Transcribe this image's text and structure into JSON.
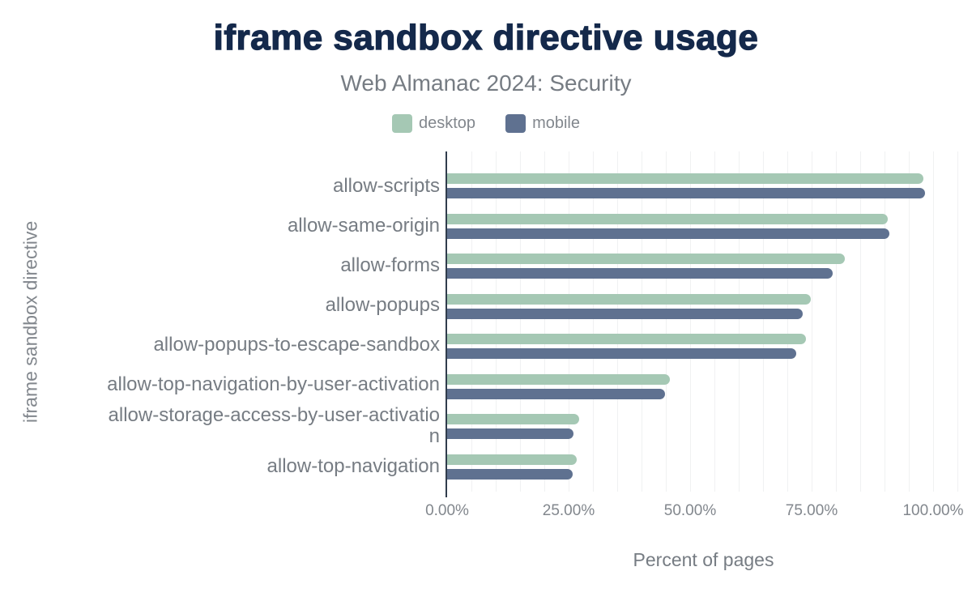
{
  "chart": {
    "title": "iframe sandbox directive usage",
    "subtitle": "Web Almanac 2024: Security",
    "xlabel": "Percent of pages",
    "ylabel": "iframe sandbox directive"
  },
  "chart_data": {
    "type": "bar",
    "orientation": "horizontal",
    "title": "iframe sandbox directive usage",
    "subtitle": "Web Almanac 2024: Security",
    "xlabel": "Percent of pages",
    "ylabel": "iframe sandbox directive",
    "categories": [
      "allow-scripts",
      "allow-same-origin",
      "allow-forms",
      "allow-popups",
      "allow-popups-to-escape-sandbox",
      "allow-top-navigation-by-user-activation",
      "allow-storage-access-by-user-activation",
      "allow-top-navigation"
    ],
    "series": [
      {
        "name": "desktop",
        "color": "#a5c8b4",
        "values": [
          98.0,
          90.7,
          81.8,
          74.8,
          73.8,
          45.8,
          27.2,
          26.7
        ]
      },
      {
        "name": "mobile",
        "color": "#5f7190",
        "values": [
          98.3,
          91.0,
          79.3,
          73.2,
          71.8,
          44.8,
          26.0,
          25.8
        ]
      }
    ],
    "x_ticks": [
      "0.00%",
      "25.00%",
      "50.00%",
      "75.00%",
      "100.00%"
    ],
    "x_tick_step_percent": 25,
    "xlim": [
      0,
      105
    ],
    "grid": true,
    "grid_step_percent": 5,
    "legend_position": "top",
    "value_unit": "percent of pages"
  },
  "colors": {
    "title": "#14294b",
    "subtitle_gray": "#767c83",
    "tick_gray": "#82878d",
    "axis_line": "#303c4c",
    "grid": "#f0f1f2",
    "desktop": "#a5c8b4",
    "mobile": "#5f7190"
  }
}
